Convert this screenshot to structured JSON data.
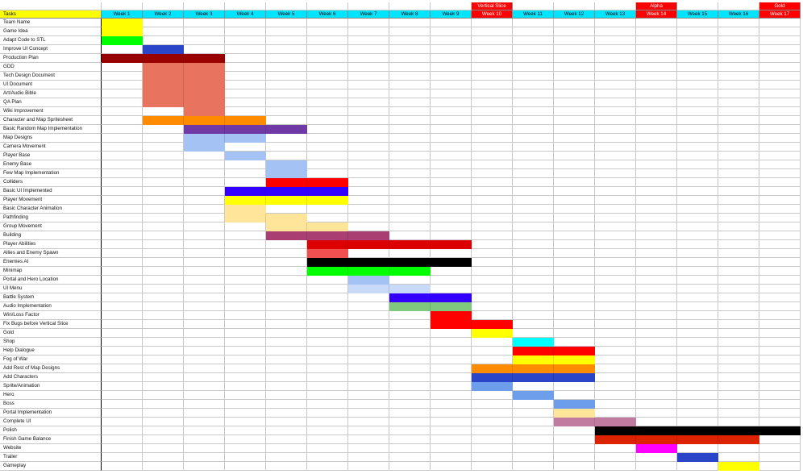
{
  "header_label": "Tasks",
  "weeks": [
    "Week 1",
    "Week 2",
    "Week 3",
    "Week 4",
    "Week 5",
    "Week 6",
    "Week 7",
    "Week 8",
    "Week 9",
    "Week 10",
    "Week 11",
    "Week 12",
    "Week 13",
    "Week 14",
    "Week 15",
    "Week 16",
    "Week 17"
  ],
  "milestones": [
    {
      "week": 10,
      "label": "Vertical Slice"
    },
    {
      "week": 14,
      "label": "Alpha"
    },
    {
      "week": 17,
      "label": "Gold"
    }
  ],
  "colors": {
    "header_bg": "#ffff00",
    "week_bg": "#00e5ff",
    "milestone_bg": "#ff0000",
    "grid": "#c8c8c8"
  },
  "tasks": [
    {
      "name": "Team Name",
      "bars": [
        {
          "start": 1,
          "end": 1,
          "color": "#ffff00"
        }
      ]
    },
    {
      "name": "Game Idea",
      "bars": [
        {
          "start": 1,
          "end": 1,
          "color": "#ffff00"
        }
      ]
    },
    {
      "name": "Adapt Code to STL",
      "bars": [
        {
          "start": 1,
          "end": 1,
          "color": "#00ff00"
        }
      ]
    },
    {
      "name": "Improve UI Concept",
      "bars": [
        {
          "start": 2,
          "end": 2,
          "color": "#2a45c8"
        }
      ]
    },
    {
      "name": "Production Plan",
      "bars": [
        {
          "start": 1,
          "end": 3,
          "color": "#990000"
        }
      ]
    },
    {
      "name": "GDD",
      "bars": [
        {
          "start": 2,
          "end": 3,
          "color": "#e8735f"
        }
      ]
    },
    {
      "name": "Tech Design Document",
      "bars": [
        {
          "start": 2,
          "end": 3,
          "color": "#e8735f"
        }
      ]
    },
    {
      "name": "UI Document",
      "bars": [
        {
          "start": 2,
          "end": 3,
          "color": "#e8735f"
        }
      ]
    },
    {
      "name": "Art/Audio Bible",
      "bars": [
        {
          "start": 2,
          "end": 3,
          "color": "#e8735f"
        }
      ]
    },
    {
      "name": "QA Plan",
      "bars": [
        {
          "start": 2,
          "end": 3,
          "color": "#e8735f"
        }
      ]
    },
    {
      "name": "Wiki Improvement",
      "bars": [
        {
          "start": 3,
          "end": 3,
          "color": "#e8735f"
        }
      ]
    },
    {
      "name": "Character and Map Spritesheet",
      "bars": [
        {
          "start": 2,
          "end": 4,
          "color": "#ff8c00"
        }
      ]
    },
    {
      "name": "Basic Random Map Implementation",
      "bars": [
        {
          "start": 3,
          "end": 5,
          "color": "#6f3aa6"
        }
      ]
    },
    {
      "name": "Map Designs",
      "bars": [
        {
          "start": 3,
          "end": 4,
          "color": "#a4c2f4"
        }
      ]
    },
    {
      "name": "Camera Movement",
      "bars": [
        {
          "start": 3,
          "end": 3,
          "color": "#a4c2f4"
        }
      ]
    },
    {
      "name": "Player Base",
      "bars": [
        {
          "start": 4,
          "end": 4,
          "color": "#a4c2f4"
        }
      ]
    },
    {
      "name": "Enemy Base",
      "bars": [
        {
          "start": 5,
          "end": 5,
          "color": "#a4c2f4"
        }
      ]
    },
    {
      "name": "Few Map Implementation",
      "bars": [
        {
          "start": 5,
          "end": 5,
          "color": "#a4c2f4"
        }
      ]
    },
    {
      "name": "Colliders",
      "bars": [
        {
          "start": 5,
          "end": 6,
          "color": "#ff0000"
        }
      ]
    },
    {
      "name": "Basic UI Implemented",
      "bars": [
        {
          "start": 4,
          "end": 6,
          "color": "#3300ff"
        }
      ]
    },
    {
      "name": "Player Movement",
      "bars": [
        {
          "start": 4,
          "end": 6,
          "color": "#ffff00"
        }
      ]
    },
    {
      "name": "Basic Character Animation",
      "bars": [
        {
          "start": 4,
          "end": 4,
          "color": "#ffe599"
        }
      ]
    },
    {
      "name": "Pathfinding",
      "bars": [
        {
          "start": 4,
          "end": 5,
          "color": "#ffe599"
        }
      ]
    },
    {
      "name": "Group Movement",
      "bars": [
        {
          "start": 5,
          "end": 6,
          "color": "#ffe599"
        }
      ]
    },
    {
      "name": "Building",
      "bars": [
        {
          "start": 5,
          "end": 7,
          "color": "#a83e72"
        }
      ]
    },
    {
      "name": "Player Abilities",
      "bars": [
        {
          "start": 6,
          "end": 9,
          "color": "#dd0000"
        }
      ]
    },
    {
      "name": "Allies and Enemy Spawn",
      "bars": [
        {
          "start": 6,
          "end": 6,
          "color": "#f05050"
        }
      ]
    },
    {
      "name": "Enemies AI",
      "bars": [
        {
          "start": 6,
          "end": 9,
          "color": "#000000"
        }
      ]
    },
    {
      "name": "Minimap",
      "bars": [
        {
          "start": 6,
          "end": 8,
          "color": "#00ff00"
        }
      ]
    },
    {
      "name": "Portal and Hero Location",
      "bars": [
        {
          "start": 7,
          "end": 7,
          "color": "#a4c2f4"
        }
      ]
    },
    {
      "name": "UI Menu",
      "bars": [
        {
          "start": 7,
          "end": 8,
          "color": "#c9daf8"
        }
      ]
    },
    {
      "name": "Battle System",
      "bars": [
        {
          "start": 8,
          "end": 9,
          "color": "#3300ff"
        }
      ]
    },
    {
      "name": "Audio Implementation",
      "bars": [
        {
          "start": 8,
          "end": 9,
          "color": "#7fc97f"
        }
      ]
    },
    {
      "name": "Win/Loss Factor",
      "bars": [
        {
          "start": 9,
          "end": 9,
          "color": "#ff0000"
        }
      ]
    },
    {
      "name": "Fix Bugs before Vertical Slice",
      "bars": [
        {
          "start": 9,
          "end": 10,
          "color": "#ff0000"
        }
      ]
    },
    {
      "name": "Gold",
      "bars": [
        {
          "start": 10,
          "end": 10,
          "color": "#ffff00"
        }
      ]
    },
    {
      "name": "Shop",
      "bars": [
        {
          "start": 11,
          "end": 11,
          "color": "#00ffff"
        }
      ]
    },
    {
      "name": "Help Dialogue",
      "bars": [
        {
          "start": 11,
          "end": 12,
          "color": "#ff0000"
        }
      ]
    },
    {
      "name": "Fog of War",
      "bars": [
        {
          "start": 11,
          "end": 12,
          "color": "#ffff00"
        }
      ]
    },
    {
      "name": "Add Rest of Map Designs",
      "bars": [
        {
          "start": 10,
          "end": 12,
          "color": "#ff8c00"
        }
      ]
    },
    {
      "name": "Add Characters",
      "bars": [
        {
          "start": 10,
          "end": 12,
          "color": "#2a45c8"
        }
      ]
    },
    {
      "name": "Sprite/Animation",
      "bars": [
        {
          "start": 10,
          "end": 10,
          "color": "#6d9eeb"
        }
      ]
    },
    {
      "name": "Hero",
      "bars": [
        {
          "start": 11,
          "end": 11,
          "color": "#6d9eeb"
        }
      ]
    },
    {
      "name": "Boss",
      "bars": [
        {
          "start": 12,
          "end": 12,
          "color": "#6d9eeb"
        }
      ]
    },
    {
      "name": "Portal Implementation",
      "bars": [
        {
          "start": 12,
          "end": 12,
          "color": "#ffe599"
        }
      ]
    },
    {
      "name": "Complete UI",
      "bars": [
        {
          "start": 12,
          "end": 13,
          "color": "#c27ba0"
        }
      ]
    },
    {
      "name": "Polish",
      "bars": [
        {
          "start": 13,
          "end": 17,
          "color": "#000000"
        }
      ]
    },
    {
      "name": "Finish Game Balance",
      "bars": [
        {
          "start": 13,
          "end": 16,
          "color": "#dd2200"
        }
      ]
    },
    {
      "name": "Website",
      "bars": [
        {
          "start": 14,
          "end": 14,
          "color": "#ff00ff"
        }
      ]
    },
    {
      "name": "Trailer",
      "bars": [
        {
          "start": 15,
          "end": 15,
          "color": "#2a45c8"
        }
      ]
    },
    {
      "name": "Gameplay",
      "bars": [
        {
          "start": 16,
          "end": 16,
          "color": "#ffff00"
        }
      ]
    }
  ]
}
